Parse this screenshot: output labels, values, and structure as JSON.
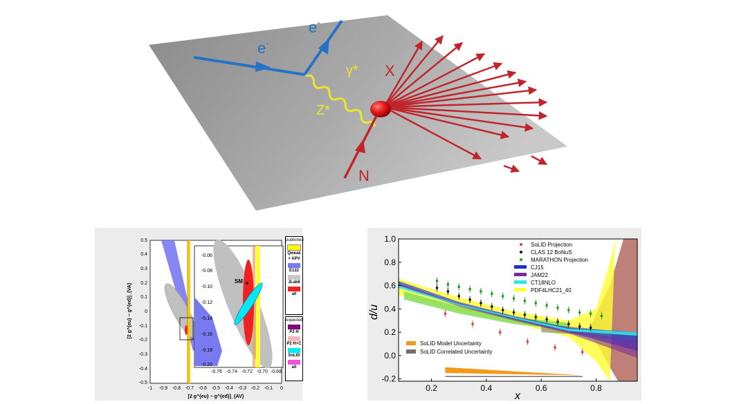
{
  "diagram": {
    "labels": {
      "electron_in": "e",
      "electron_out": "e",
      "electron_sup": "-",
      "gamma": "γ*",
      "z": "Z*",
      "x": "X",
      "n": "N"
    },
    "colors": {
      "plane": "#9a9a9a",
      "electron": "#2673c6",
      "hadron": "#c0252b",
      "boson": "#e8e82a"
    }
  },
  "left_plot": {
    "y_ticks": [
      "0.5",
      "0.4",
      "0.3",
      "0.2",
      "0.1",
      "0",
      "-0.1",
      "-0.2",
      "-0.3",
      "-0.4",
      "-0.5"
    ],
    "x_ticks": [
      "-1",
      "-0.9",
      "-0.8",
      "-0.7",
      "-0.6",
      "-0.5",
      "-0.4",
      "-0.3",
      "-0.2",
      "-0.1",
      "0"
    ],
    "y_label": "[2 g^{eu} − g^{ed}]_{VA}",
    "x_label": "[2 g^{eu} − g^{ed}]_{AV}",
    "inset": {
      "y_ticks": [
        "-0.06",
        "-0.08",
        "-0.10",
        "-0.12",
        "-0.14",
        "-0.16",
        "-0.18",
        "-0.20"
      ],
      "x_ticks": [
        "-0.76",
        "-0.74",
        "-0.72",
        "-0.70",
        "-0.68"
      ],
      "sm_label": "SM"
    },
    "legend": {
      "published_title": "published",
      "published": [
        {
          "label": "Qweak\n+ APV",
          "color": "#ffff00"
        },
        {
          "label": "E122",
          "color": "#7a7af0"
        },
        {
          "label": "JLab6",
          "color": "#c8c8c8"
        },
        {
          "label": "all",
          "color": "#ee2222"
        }
      ],
      "expected_title": "expected",
      "expected": [
        {
          "label": "P2 H",
          "color": "#7b0a7b"
        },
        {
          "label": "P2 H+C",
          "color": "#f4b6b6"
        },
        {
          "label": "SoLID",
          "color": "#00e8f0"
        },
        {
          "label": "all",
          "color": "#ee55dd"
        }
      ]
    }
  },
  "chart_data": {
    "type": "line",
    "xlabel": "x",
    "ylabel": "d/u",
    "xlim": [
      0.08,
      0.95
    ],
    "ylim": [
      -0.22,
      1.0
    ],
    "x_ticks": [
      "0.2",
      "0.4",
      "0.6",
      "0.8"
    ],
    "y_ticks": [
      "1.0",
      "0.8",
      "0.6",
      "0.4",
      "0.2",
      "0.0",
      "-0.2"
    ],
    "legend_top": [
      {
        "label": "SoLID Projection",
        "color": "#e23b3b",
        "marker": "point"
      },
      {
        "label": "CLAS 12 BoNuS",
        "color": "#111111",
        "marker": "point"
      },
      {
        "label": "MARATHON Projection",
        "color": "#1e9a2a",
        "marker": "point"
      },
      {
        "label": "CJ15",
        "color": "#1f2fd6",
        "marker": "band"
      },
      {
        "label": "JAM22",
        "color": "#7a2a9a",
        "marker": "band"
      },
      {
        "label": "CT18NLO",
        "color": "#2ee6e6",
        "marker": "band"
      },
      {
        "label": "PDF4LHC21_40",
        "color": "#ffff33",
        "marker": "band"
      }
    ],
    "legend_bottom": [
      {
        "label": "SoLID Model Uncertainty",
        "color": "#f39a1a"
      },
      {
        "label": "SoLID Correlated Uncertainty",
        "color": "#707070"
      }
    ],
    "series": [
      {
        "name": "SoLID Projection",
        "x": [
          0.25,
          0.35,
          0.45,
          0.55,
          0.65,
          0.75
        ],
        "y": [
          0.36,
          0.27,
          0.2,
          0.12,
          0.07,
          0.03
        ]
      },
      {
        "name": "CLAS 12 BoNuS",
        "x": [
          0.22,
          0.26,
          0.3,
          0.34,
          0.38,
          0.42,
          0.46,
          0.5,
          0.54,
          0.58,
          0.62,
          0.66,
          0.7,
          0.74,
          0.78
        ],
        "y": [
          0.58,
          0.55,
          0.51,
          0.48,
          0.45,
          0.42,
          0.39,
          0.37,
          0.35,
          0.33,
          0.31,
          0.29,
          0.27,
          0.25,
          0.24
        ]
      },
      {
        "name": "MARATHON Projection",
        "x": [
          0.22,
          0.26,
          0.3,
          0.34,
          0.38,
          0.42,
          0.46,
          0.5,
          0.54,
          0.58,
          0.62,
          0.66,
          0.7,
          0.74,
          0.78,
          0.82
        ],
        "y": [
          0.64,
          0.61,
          0.59,
          0.57,
          0.55,
          0.53,
          0.51,
          0.49,
          0.47,
          0.45,
          0.43,
          0.41,
          0.39,
          0.37,
          0.36,
          0.34
        ]
      }
    ]
  }
}
